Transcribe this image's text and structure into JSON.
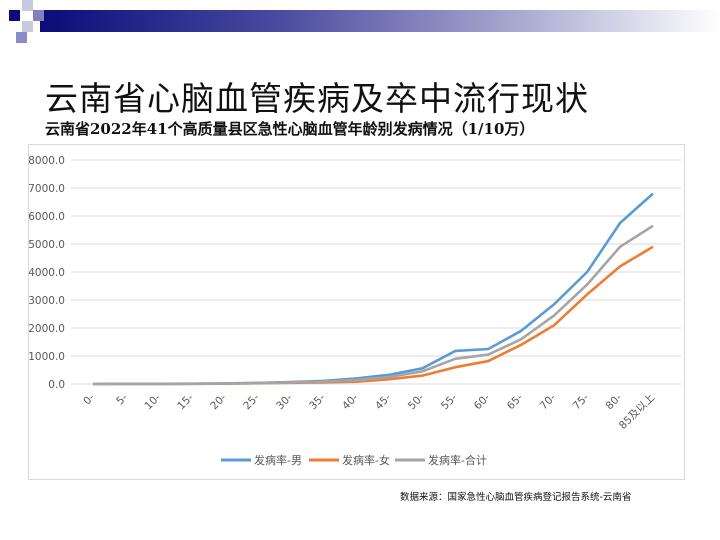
{
  "title": "云南省心脑血管疾病及卒中流行现状",
  "subtitle": "云南省2022年41个高质量县区急性心脑血管年龄别发病情况（1/10万）",
  "source": "数据来源：国家急性心脑血管疾病登记报告系统-云南省",
  "chart_data": {
    "type": "line",
    "title": "",
    "xlabel": "",
    "ylabel": "",
    "categories": [
      "0-",
      "5-",
      "10-",
      "15-",
      "20-",
      "25-",
      "30-",
      "35-",
      "40-",
      "45-",
      "50-",
      "55-",
      "60-",
      "65-",
      "70-",
      "75-",
      "80-",
      "85及以上"
    ],
    "ylim": [
      0,
      8000
    ],
    "yticks": [
      "0.0",
      "1000.0",
      "2000.0",
      "3000.0",
      "4000.0",
      "5000.0",
      "6000.0",
      "7000.0",
      "8000.0"
    ],
    "grid": true,
    "legend_placement": "bottom",
    "series": [
      {
        "name": "发病率-男",
        "color": "#5b9bd5",
        "values": [
          0,
          5,
          5,
          10,
          20,
          40,
          70,
          110,
          200,
          330,
          560,
          1180,
          1250,
          1900,
          2850,
          4000,
          5750,
          6800
        ]
      },
      {
        "name": "发病率-女",
        "color": "#ed7d31",
        "values": [
          0,
          3,
          3,
          6,
          12,
          25,
          40,
          60,
          80,
          170,
          300,
          600,
          820,
          1400,
          2100,
          3200,
          4200,
          4900
        ]
      },
      {
        "name": "发病率-合计",
        "color": "#a5a5a5",
        "values": [
          0,
          4,
          4,
          8,
          16,
          32,
          55,
          85,
          140,
          250,
          450,
          900,
          1050,
          1600,
          2450,
          3550,
          4900,
          5650
        ]
      }
    ]
  }
}
